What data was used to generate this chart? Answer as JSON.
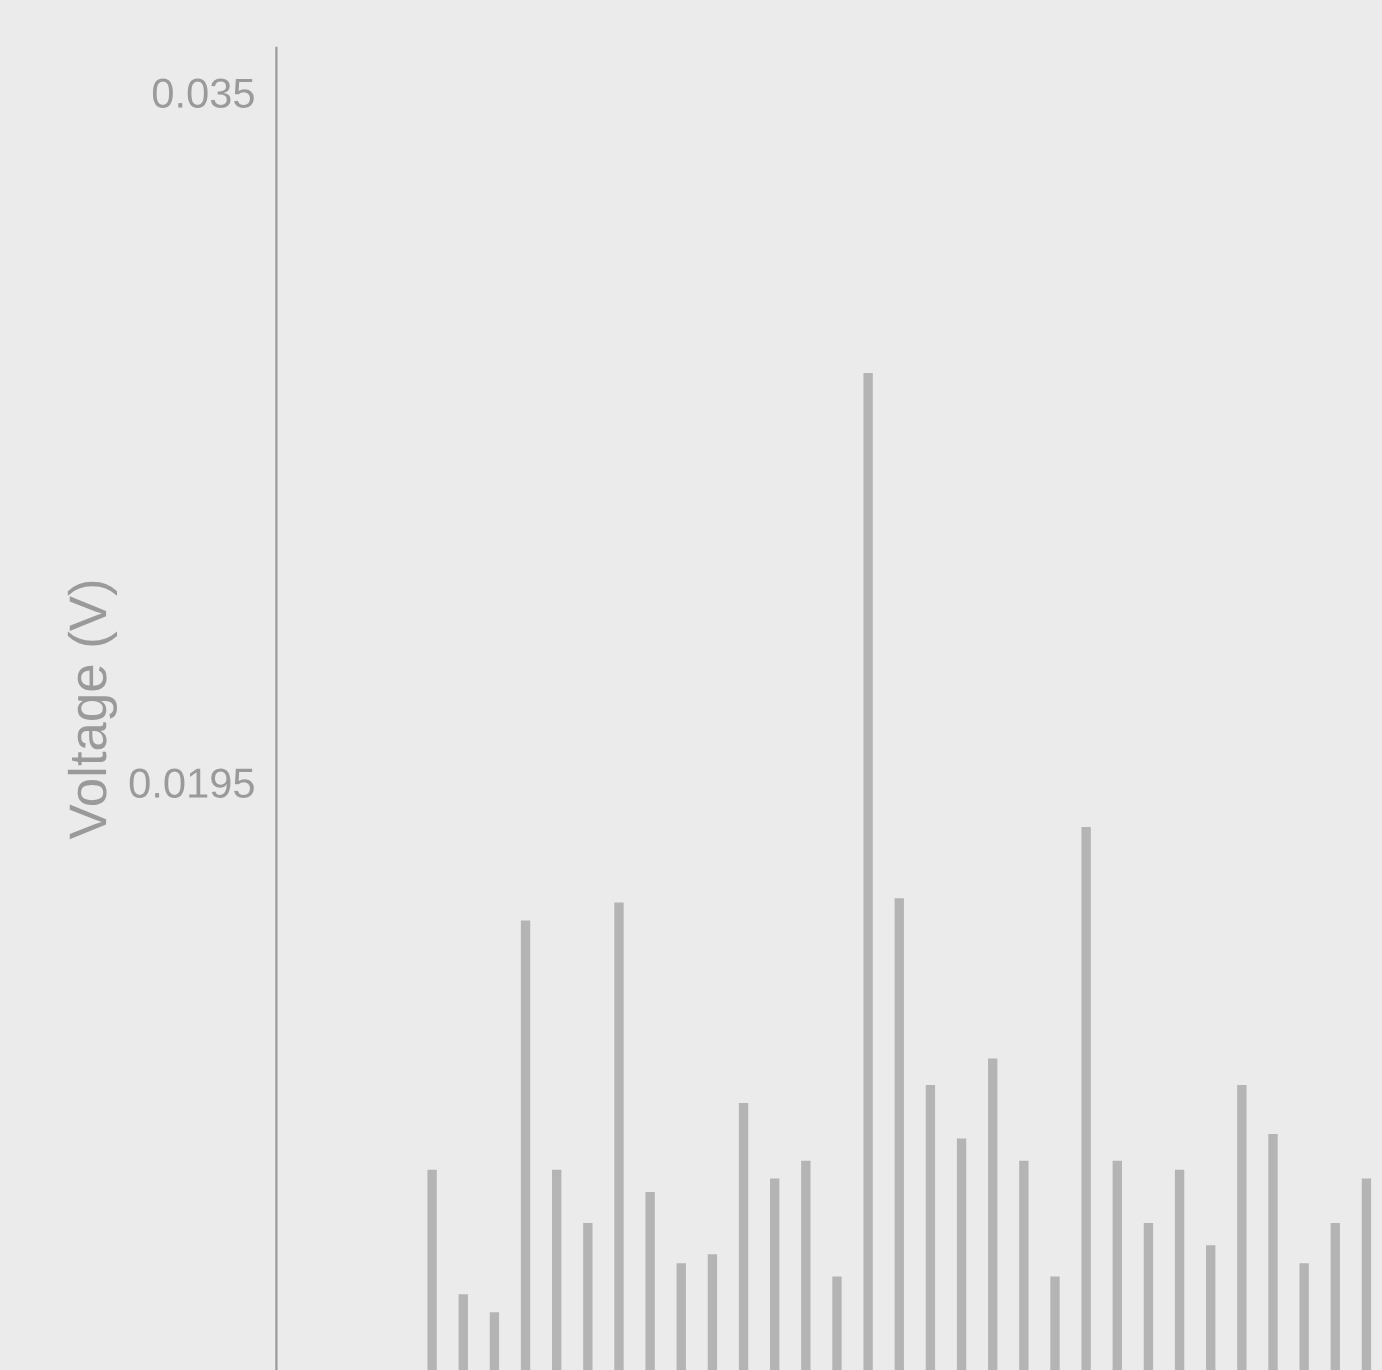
{
  "chart_data": {
    "type": "bar",
    "ylabel": "Voltage (V)",
    "color": "#b4b4b4",
    "categories": [
      null,
      null,
      null,
      null,
      null,
      null,
      null,
      null,
      null,
      null,
      null,
      null,
      null,
      null,
      null,
      null,
      null,
      null,
      null,
      null,
      null,
      null,
      null,
      null,
      null,
      null,
      null,
      null,
      null,
      null,
      null
    ],
    "values": [
      0.0108,
      0.008,
      0.0076,
      0.0164,
      0.0108,
      0.0096,
      0.0168,
      0.0103,
      0.0087,
      0.0089,
      0.0123,
      0.0106,
      0.011,
      0.0084,
      0.0287,
      0.0169,
      0.0127,
      0.0115,
      0.0133,
      0.011,
      0.0084,
      0.0185,
      0.011,
      0.0096,
      0.0108,
      0.0091,
      0.0127,
      0.0116,
      0.0087,
      0.0096,
      0.0106
    ],
    "ylim": [
      0.0063,
      0.036
    ],
    "yticks": [
      0.0195,
      0.035
    ],
    "grid": false
  }
}
